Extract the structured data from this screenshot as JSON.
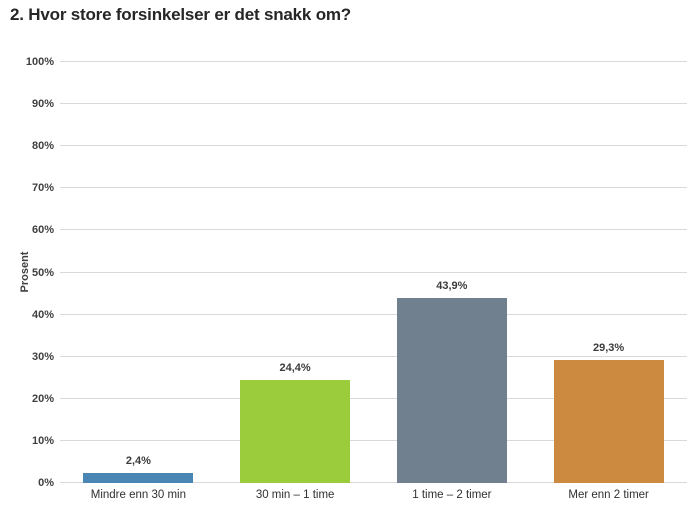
{
  "chart_data": {
    "type": "bar",
    "title": "2. Hvor store forsinkelser er det snakk om?",
    "ylabel": "Prosent",
    "xlabel": "",
    "categories": [
      "Mindre enn 30 min",
      "30 min – 1 time",
      "1 time – 2 timer",
      "Mer enn 2 timer"
    ],
    "values": [
      2.4,
      24.4,
      43.9,
      29.3
    ],
    "value_labels": [
      "2,4%",
      "24,4%",
      "43,9%",
      "29,3%"
    ],
    "bar_colors": [
      "#4a86b4",
      "#9acc3c",
      "#70808e",
      "#cc8a40"
    ],
    "ylim": [
      0,
      100
    ],
    "ytick_step": 10,
    "ytick_labels": [
      "0%",
      "10%",
      "20%",
      "30%",
      "40%",
      "50%",
      "60%",
      "70%",
      "80%",
      "90%",
      "100%"
    ],
    "grid": "horizontal",
    "gridline_color": "#d9d9d9",
    "legend": "none",
    "background_color": "#ffffff"
  }
}
